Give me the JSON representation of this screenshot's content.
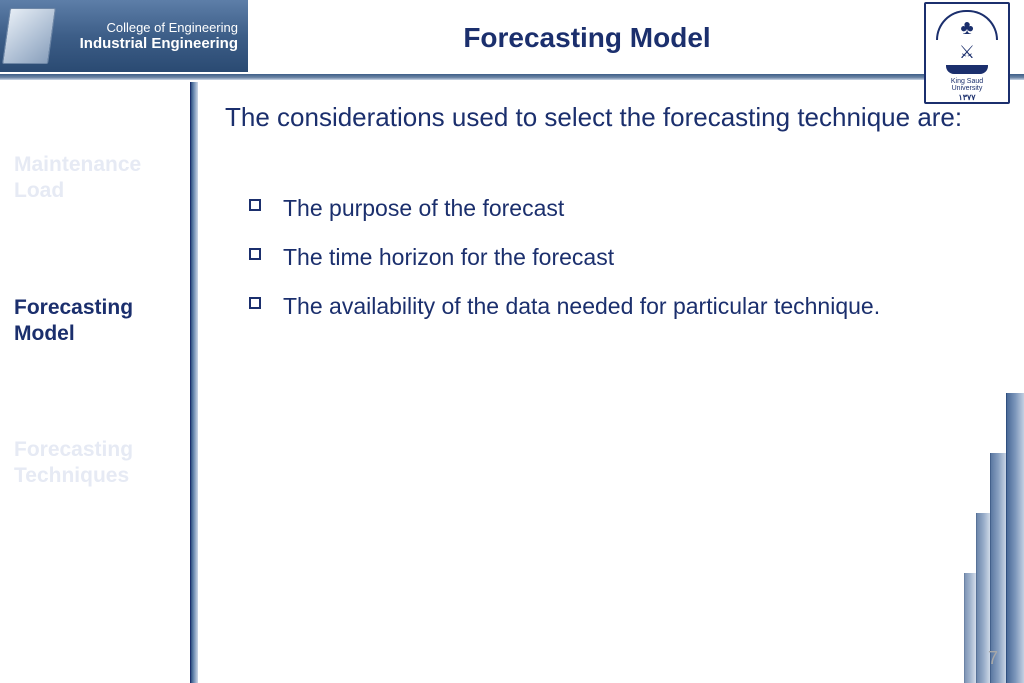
{
  "header": {
    "dept_line1": "College of Engineering",
    "dept_line2": "Industrial Engineering",
    "title": "Forecasting Model",
    "logo": {
      "name_top": "King Saud",
      "name_bottom": "University",
      "year": "١٣٧٧"
    }
  },
  "sidebar": {
    "items": [
      {
        "label": "Maintenance Load",
        "active": false
      },
      {
        "label": "Forecasting Model",
        "active": true
      },
      {
        "label": "Forecasting Techniques",
        "active": false
      }
    ]
  },
  "content": {
    "intro": "The considerations used to select the forecasting technique are:",
    "bullets": [
      "The purpose of the forecast",
      "The time horizon for the forecast",
      "The availability of the data needed for particular technique."
    ]
  },
  "page_number": "7",
  "colors": {
    "brand_navy": "#1b2f6d",
    "header_grad_top": "#5d7ea8",
    "header_grad_bot": "#2a4a72",
    "nav_inactive": "#e6eaf4",
    "page_num": "#a8a8a8",
    "background": "#ffffff"
  }
}
